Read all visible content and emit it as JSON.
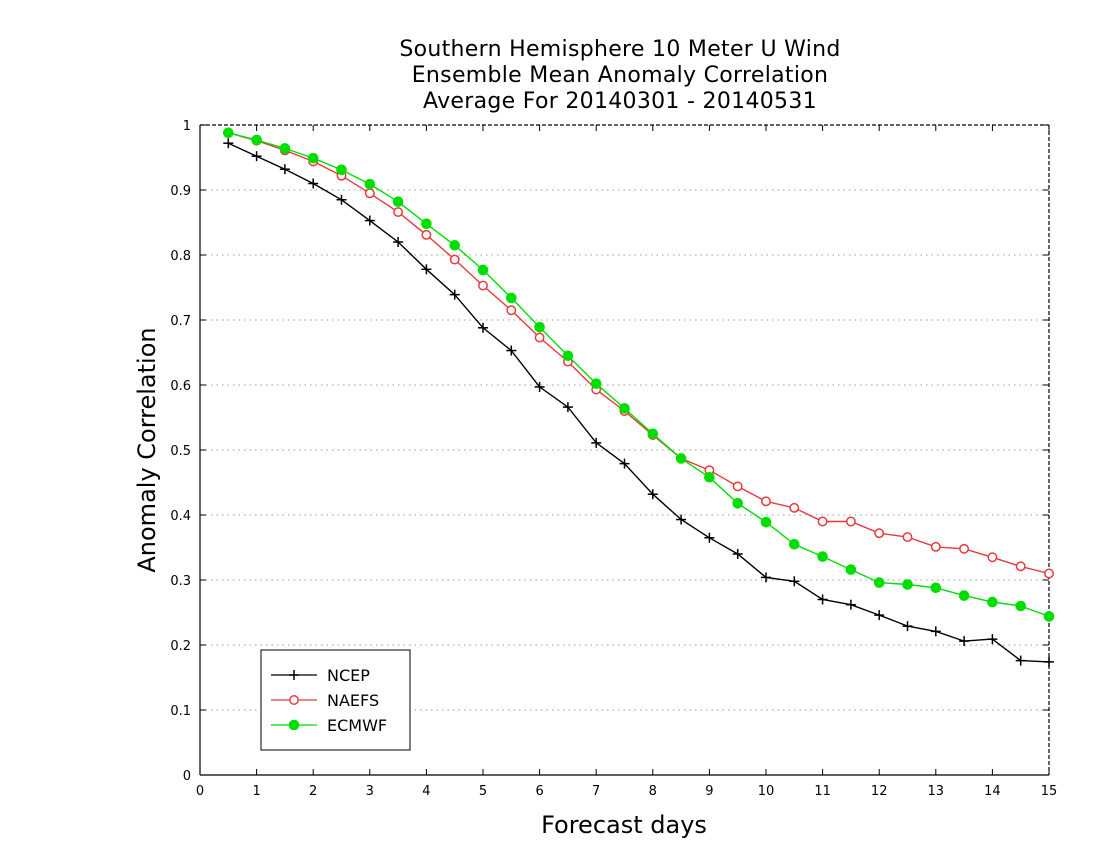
{
  "chart_data": {
    "type": "line",
    "title": [
      "Southern Hemisphere 10 Meter U Wind",
      "Ensemble Mean Anomaly Correlation",
      "Average For 20140301 - 20140531"
    ],
    "xlabel": "Forecast days",
    "ylabel": "Anomaly Correlation",
    "xlim": [
      0,
      15
    ],
    "ylim": [
      0,
      1
    ],
    "xticks": [
      0,
      1,
      2,
      3,
      4,
      5,
      6,
      7,
      8,
      9,
      10,
      11,
      12,
      13,
      14,
      15
    ],
    "yticks": [
      0,
      0.1,
      0.2,
      0.3,
      0.4,
      0.5,
      0.6,
      0.7,
      0.8,
      0.9,
      1
    ],
    "ytick_labels": [
      "0",
      "0.1",
      "0.2",
      "0.3",
      "0.4",
      "0.5",
      "0.6",
      "0.7",
      "0.8",
      "0.9",
      "1"
    ],
    "grid": "horizontal dotted",
    "legend_position": "bottom-left",
    "x": [
      0.5,
      1,
      1.5,
      2,
      2.5,
      3,
      3.5,
      4,
      4.5,
      5,
      5.5,
      6,
      6.5,
      7,
      7.5,
      8,
      8.5,
      9,
      9.5,
      10,
      10.5,
      11,
      11.5,
      12,
      12.5,
      13,
      13.5,
      14,
      14.5,
      15
    ],
    "series": [
      {
        "name": "NCEP",
        "color": "#000000",
        "marker": "plus",
        "values": [
          0.972,
          0.952,
          0.932,
          0.91,
          0.885,
          0.853,
          0.82,
          0.778,
          0.739,
          0.688,
          0.653,
          0.597,
          0.566,
          0.511,
          0.479,
          0.432,
          0.393,
          0.365,
          0.34,
          0.304,
          0.298,
          0.27,
          0.262,
          0.246,
          0.229,
          0.221,
          0.206,
          0.209,
          0.176,
          0.174
        ]
      },
      {
        "name": "NAEFS",
        "color": "#e8393b",
        "marker": "open-circle",
        "values": [
          0.988,
          0.976,
          0.961,
          0.944,
          0.922,
          0.895,
          0.866,
          0.831,
          0.793,
          0.753,
          0.715,
          0.673,
          0.636,
          0.593,
          0.56,
          0.523,
          0.487,
          0.469,
          0.444,
          0.421,
          0.411,
          0.39,
          0.39,
          0.372,
          0.366,
          0.351,
          0.348,
          0.335,
          0.321,
          0.31
        ]
      },
      {
        "name": "ECMWF",
        "color": "#00dd00",
        "marker": "filled-circle",
        "values": [
          0.988,
          0.977,
          0.964,
          0.949,
          0.931,
          0.909,
          0.882,
          0.848,
          0.815,
          0.777,
          0.734,
          0.689,
          0.645,
          0.602,
          0.564,
          0.525,
          0.487,
          0.458,
          0.418,
          0.389,
          0.355,
          0.336,
          0.316,
          0.296,
          0.293,
          0.288,
          0.276,
          0.266,
          0.26,
          0.244
        ]
      }
    ]
  }
}
